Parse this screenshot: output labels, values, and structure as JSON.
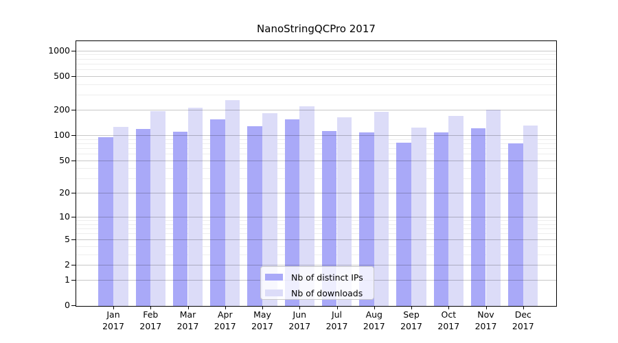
{
  "chart_data": {
    "type": "bar",
    "title": "NanoStringQCPro 2017",
    "categories": [
      "Jan",
      "Feb",
      "Mar",
      "Apr",
      "May",
      "Jun",
      "Jul",
      "Aug",
      "Sep",
      "Oct",
      "Nov",
      "Dec"
    ],
    "category_year": "2017",
    "series": [
      {
        "name": "Nb of distinct IPs",
        "color": "#a9a9f8",
        "values": [
          94,
          118,
          110,
          153,
          127,
          154,
          111,
          107,
          82,
          108,
          120,
          80
        ]
      },
      {
        "name": "Nb of downloads",
        "color": "#dcdcf8",
        "values": [
          125,
          192,
          210,
          262,
          183,
          218,
          164,
          190,
          124,
          169,
          199,
          130
        ]
      }
    ],
    "y_axis": {
      "scale": "log1p",
      "ticks": [
        0,
        1,
        2,
        5,
        10,
        20,
        50,
        100,
        200,
        500,
        1000
      ]
    },
    "grid": {
      "major": true,
      "minor": true,
      "minor_steps": [
        3,
        4,
        6,
        7,
        8,
        9
      ]
    },
    "legend": {
      "position": "inside-bottom-center"
    }
  }
}
